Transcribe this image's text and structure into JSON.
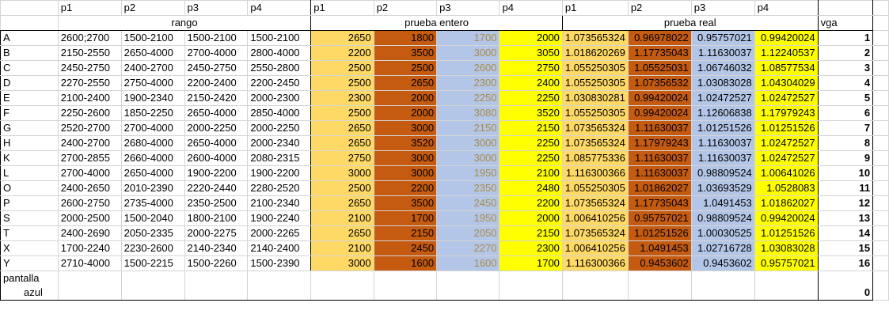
{
  "header": {
    "cols": [
      "p1",
      "p2",
      "p3",
      "p4",
      "p1",
      "p2",
      "p3",
      "p4",
      "p1",
      "p2",
      "p3",
      "p4"
    ],
    "group_rango": "rango",
    "group_entero": "prueba entero",
    "group_real": "prueba real",
    "vga": "vga"
  },
  "rows": [
    {
      "label": "A",
      "rango": [
        "2600;2700",
        "1500-2100",
        "1500-2100",
        "1500-2100"
      ],
      "entero": [
        "2650",
        "1800",
        "1700",
        "2000"
      ],
      "real": [
        "1.073565324",
        "0.96978022",
        "0.95757021",
        "0.99420024"
      ],
      "vga": "1"
    },
    {
      "label": "B",
      "rango": [
        "2150-2550",
        "2650-4000",
        "2700-4000",
        "2800-4000"
      ],
      "entero": [
        "2200",
        "3500",
        "3000",
        "3050"
      ],
      "real": [
        "1.018620269",
        "1.17735043",
        "1.11630037",
        "1.12240537"
      ],
      "vga": "2"
    },
    {
      "label": "C",
      "rango": [
        "2450-2750",
        "2400-2700",
        "2450-2750",
        "2550-2800"
      ],
      "entero": [
        "2500",
        "2500",
        "2600",
        "2750"
      ],
      "real": [
        "1.055250305",
        "1.05525031",
        "1.06746032",
        "1.08577534"
      ],
      "vga": "3"
    },
    {
      "label": "D",
      "rango": [
        "2270-2550",
        "2750-4000",
        "2200-2400",
        "2200-2450"
      ],
      "entero": [
        "2500",
        "2650",
        "2300",
        "2400"
      ],
      "real": [
        "1.055250305",
        "1.07356532",
        "1.03083028",
        "1.04304029"
      ],
      "vga": "4"
    },
    {
      "label": "E",
      "rango": [
        "2100-2400",
        "1900-2340",
        "2150-2420",
        "2000-2300"
      ],
      "entero": [
        "2300",
        "2000",
        "2250",
        "2250"
      ],
      "real": [
        "1.030830281",
        "0.99420024",
        "1.02472527",
        "1.02472527"
      ],
      "vga": "5"
    },
    {
      "label": "F",
      "rango": [
        "2250-2600",
        "1850-2250",
        "2650-4000",
        "2850-4000"
      ],
      "entero": [
        "2500",
        "2000",
        "3080",
        "3520"
      ],
      "real": [
        "1.055250305",
        "0.99420024",
        "1.12606838",
        "1.17979243"
      ],
      "vga": "6"
    },
    {
      "label": "G",
      "rango": [
        "2520-2700",
        "2700-4000",
        "2000-2250",
        "2000-2250"
      ],
      "entero": [
        "2650",
        "3000",
        "2150",
        "2150"
      ],
      "real": [
        "1.073565324",
        "1.11630037",
        "1.01251526",
        "1.01251526"
      ],
      "vga": "7"
    },
    {
      "label": "H",
      "rango": [
        "2400-2700",
        "2680-4000",
        "2650-4000",
        "2000-2340"
      ],
      "entero": [
        "2650",
        "3520",
        "3000",
        "2250"
      ],
      "real": [
        "1.073565324",
        "1.17979243",
        "1.11630037",
        "1.02472527"
      ],
      "vga": "8"
    },
    {
      "label": "K",
      "rango": [
        "2700-2855",
        "2660-4000",
        "2600-4000",
        "2080-2315"
      ],
      "entero": [
        "2750",
        "3000",
        "3000",
        "2250"
      ],
      "real": [
        "1.085775336",
        "1.11630037",
        "1.11630037",
        "1.02472527"
      ],
      "vga": "9"
    },
    {
      "label": "L",
      "rango": [
        "2700-4000",
        "2650-4000",
        "1900-2200",
        "1900-2200"
      ],
      "entero": [
        "3000",
        "3000",
        "1950",
        "2100"
      ],
      "real": [
        "1.116300366",
        "1.11630037",
        "0.98809524",
        "1.00641026"
      ],
      "vga": "10"
    },
    {
      "label": "O",
      "rango": [
        "2400-2650",
        "2010-2390",
        "2220-2440",
        "2280-2520"
      ],
      "entero": [
        "2500",
        "2200",
        "2350",
        "2480"
      ],
      "real": [
        "1.055250305",
        "1.01862027",
        "1.03693529",
        "1.0528083"
      ],
      "vga": "11"
    },
    {
      "label": "P",
      "rango": [
        "2600-2750",
        "2735-4000",
        "2350-2500",
        "2100-2340"
      ],
      "entero": [
        "2650",
        "3500",
        "2450",
        "2200"
      ],
      "real": [
        "1.073565324",
        "1.17735043",
        "1.0491453",
        "1.01862027"
      ],
      "vga": "12"
    },
    {
      "label": "S",
      "rango": [
        "2000-2500",
        "1500-2040",
        "1800-2100",
        "1900-2240"
      ],
      "entero": [
        "2100",
        "1700",
        "1950",
        "2000"
      ],
      "real": [
        "1.006410256",
        "0.95757021",
        "0.98809524",
        "0.99420024"
      ],
      "vga": "13"
    },
    {
      "label": "T",
      "rango": [
        "2400-2690",
        "2050-2335",
        "2000-2275",
        "2000-2265"
      ],
      "entero": [
        "2650",
        "2150",
        "2050",
        "2150"
      ],
      "real": [
        "1.073565324",
        "1.01251526",
        "1.00030525",
        "1.01251526"
      ],
      "vga": "14"
    },
    {
      "label": "X",
      "rango": [
        "1700-2240",
        "2230-2600",
        "2140-2340",
        "2140-2400"
      ],
      "entero": [
        "2100",
        "2450",
        "2270",
        "2300"
      ],
      "real": [
        "1.006410256",
        "1.0491453",
        "1.02716728",
        "1.03083028"
      ],
      "vga": "15"
    },
    {
      "label": "Y",
      "rango": [
        "2710-4000",
        "1500-2215",
        "1500-2260",
        "1500-2390"
      ],
      "entero": [
        "3000",
        "1600",
        "1600",
        "1700"
      ],
      "real": [
        "1.116300366",
        "0.9453602",
        "0.9453602",
        "0.95757021"
      ],
      "vga": "16"
    }
  ],
  "footer": {
    "label_line1": "pantalla",
    "label_line2": "azul",
    "vga": "0"
  },
  "colors": {
    "p1": "#FFD966",
    "p2": "#C55A11",
    "p3": "#B4C6E7",
    "p4": "#FFFF00"
  }
}
